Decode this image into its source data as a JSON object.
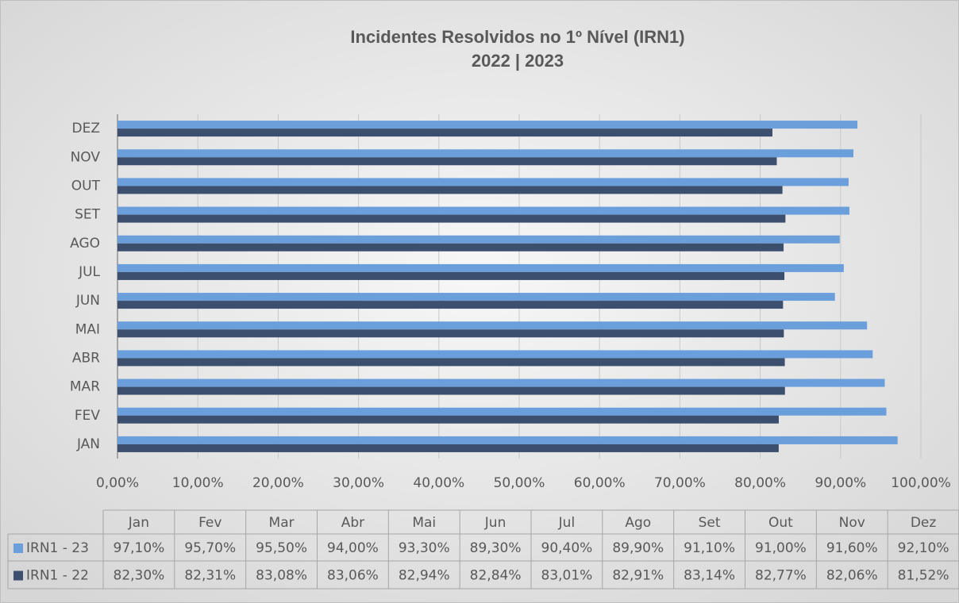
{
  "chart_data": {
    "type": "barh",
    "title": "Incidentes Resolvidos no 1º Nível (IRN1)",
    "subtitle": "2022 | 2023",
    "categories": [
      "JAN",
      "FEV",
      "MAR",
      "ABR",
      "MAI",
      "JUN",
      "JUL",
      "AGO",
      "SET",
      "OUT",
      "NOV",
      "DEZ"
    ],
    "table_columns": [
      "Jan",
      "Fev",
      "Mar",
      "Abr",
      "Mai",
      "Jun",
      "Jul",
      "Ago",
      "Set",
      "Out",
      "Nov",
      "Dez"
    ],
    "series": [
      {
        "name": "IRN1 - 23",
        "color": "#6a9fdc",
        "values": [
          97.1,
          95.7,
          95.5,
          94.0,
          93.3,
          89.3,
          90.4,
          89.9,
          91.1,
          91.0,
          91.6,
          92.1
        ],
        "value_labels": [
          "97,10%",
          "95,70%",
          "95,50%",
          "94,00%",
          "93,30%",
          "89,30%",
          "90,40%",
          "89,90%",
          "91,10%",
          "91,00%",
          "91,60%",
          "92,10%"
        ]
      },
      {
        "name": "IRN1 - 22",
        "color": "#3c4f6e",
        "values": [
          82.3,
          82.31,
          83.08,
          83.06,
          82.94,
          82.84,
          83.01,
          82.91,
          83.14,
          82.77,
          82.06,
          81.52
        ],
        "value_labels": [
          "82,30%",
          "82,31%",
          "83,08%",
          "83,06%",
          "82,94%",
          "82,84%",
          "83,01%",
          "82,91%",
          "83,14%",
          "82,77%",
          "82,06%",
          "81,52%"
        ]
      }
    ],
    "xlim": [
      0,
      100
    ],
    "xticks": [
      {
        "value": 0,
        "label": "0,00%"
      },
      {
        "value": 10,
        "label": "10,00%"
      },
      {
        "value": 20,
        "label": "20,00%"
      },
      {
        "value": 30,
        "label": "30,00%"
      },
      {
        "value": 40,
        "label": "40,00%"
      },
      {
        "value": 50,
        "label": "50,00%"
      },
      {
        "value": 60,
        "label": "60,00%"
      },
      {
        "value": 70,
        "label": "70,00%"
      },
      {
        "value": 80,
        "label": "80,00%"
      },
      {
        "value": 90,
        "label": "90,00%"
      },
      {
        "value": 100,
        "label": "100,00%"
      }
    ],
    "grid": true
  }
}
